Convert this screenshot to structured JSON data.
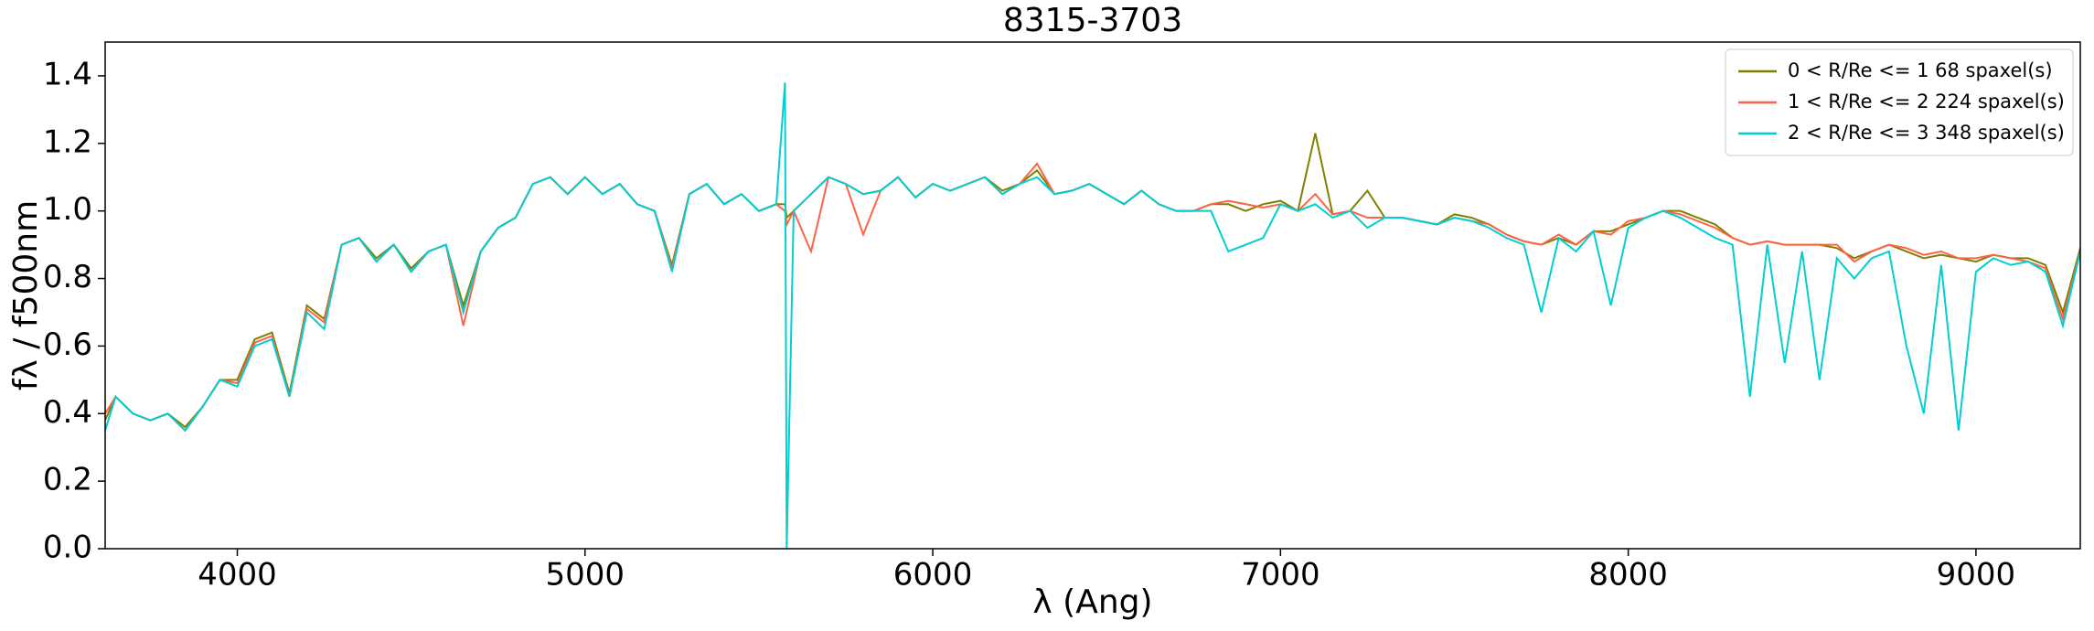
{
  "chart_data": {
    "type": "line",
    "title": "8315-3703",
    "x_label": "λ (Ang)",
    "y_label": "fλ / f500nm",
    "xlim": [
      3620,
      9300
    ],
    "ylim": [
      0,
      1.5
    ],
    "xticks": [
      4000,
      5000,
      6000,
      7000,
      8000,
      9000
    ],
    "yticks": [
      {
        "value": 0,
        "label": "0.0"
      },
      0.2,
      0.4,
      0.6,
      0.8,
      {
        "value": 1,
        "label": "1.0"
      },
      1.2,
      1.4
    ],
    "legend": "upper right",
    "x": [
      3620,
      3650,
      3700,
      3750,
      3800,
      3850,
      3900,
      3950,
      4000,
      4050,
      4100,
      4150,
      4200,
      4250,
      4300,
      4350,
      4400,
      4450,
      4500,
      4550,
      4600,
      4650,
      4700,
      4750,
      4800,
      4850,
      4900,
      4950,
      5000,
      5050,
      5100,
      5150,
      5200,
      5250,
      5300,
      5350,
      5400,
      5450,
      5500,
      5550,
      5575,
      5580,
      5600,
      5650,
      5700,
      5750,
      5800,
      5850,
      5900,
      5950,
      6000,
      6050,
      6100,
      6150,
      6200,
      6250,
      6300,
      6350,
      6400,
      6450,
      6500,
      6550,
      6600,
      6650,
      6700,
      6750,
      6800,
      6850,
      6900,
      6950,
      7000,
      7050,
      7100,
      7150,
      7200,
      7250,
      7300,
      7350,
      7400,
      7450,
      7500,
      7550,
      7600,
      7650,
      7700,
      7750,
      7800,
      7850,
      7900,
      7950,
      8000,
      8050,
      8100,
      8150,
      8200,
      8250,
      8300,
      8350,
      8400,
      8450,
      8500,
      8550,
      8600,
      8650,
      8700,
      8750,
      8800,
      8850,
      8900,
      8950,
      9000,
      9050,
      9100,
      9150,
      9200,
      9250,
      9300
    ],
    "series": [
      {
        "name": "0 < R/Re <= 1 68 spaxel(s)",
        "color": "#808000",
        "values": [
          0.38,
          0.45,
          0.4,
          0.38,
          0.4,
          0.36,
          0.42,
          0.5,
          0.5,
          0.62,
          0.64,
          0.46,
          0.72,
          0.68,
          0.9,
          0.92,
          0.86,
          0.9,
          0.83,
          0.88,
          0.9,
          0.72,
          0.88,
          0.95,
          0.98,
          1.08,
          1.1,
          1.05,
          1.1,
          1.05,
          1.08,
          1.02,
          1.0,
          0.84,
          1.05,
          1.08,
          1.02,
          1.05,
          1.0,
          1.02,
          1.02,
          0.98,
          1.0,
          1.05,
          1.1,
          1.08,
          1.05,
          1.06,
          1.1,
          1.04,
          1.08,
          1.06,
          1.08,
          1.1,
          1.06,
          1.08,
          1.12,
          1.05,
          1.06,
          1.08,
          1.05,
          1.02,
          1.06,
          1.02,
          1.0,
          1.0,
          1.02,
          1.02,
          1.0,
          1.02,
          1.03,
          1.0,
          1.23,
          0.99,
          1.0,
          1.06,
          0.98,
          0.98,
          0.97,
          0.96,
          0.99,
          0.98,
          0.96,
          0.93,
          0.91,
          0.9,
          0.92,
          0.9,
          0.94,
          0.94,
          0.96,
          0.98,
          1.0,
          1.0,
          0.98,
          0.96,
          0.92,
          0.9,
          0.91,
          0.9,
          0.9,
          0.9,
          0.89,
          0.86,
          0.88,
          0.9,
          0.88,
          0.86,
          0.87,
          0.86,
          0.85,
          0.87,
          0.86,
          0.86,
          0.84,
          0.7,
          0.89
        ]
      },
      {
        "name": "1 < R/Re <= 2 224 spaxel(s)",
        "color": "#ff6347",
        "values": [
          0.4,
          0.45,
          0.4,
          0.38,
          0.4,
          0.35,
          0.42,
          0.5,
          0.49,
          0.61,
          0.63,
          0.45,
          0.71,
          0.67,
          0.9,
          0.92,
          0.85,
          0.9,
          0.82,
          0.88,
          0.9,
          0.66,
          0.88,
          0.95,
          0.98,
          1.08,
          1.1,
          1.05,
          1.1,
          1.05,
          1.08,
          1.02,
          1.0,
          0.83,
          1.05,
          1.08,
          1.02,
          1.05,
          1.0,
          1.02,
          1.0,
          0.96,
          1.0,
          0.88,
          1.1,
          1.08,
          0.93,
          1.06,
          1.1,
          1.04,
          1.08,
          1.06,
          1.08,
          1.1,
          1.05,
          1.08,
          1.14,
          1.05,
          1.06,
          1.08,
          1.05,
          1.02,
          1.06,
          1.02,
          1.0,
          1.0,
          1.02,
          1.03,
          1.02,
          1.01,
          1.02,
          1.0,
          1.05,
          0.99,
          1.0,
          0.98,
          0.98,
          0.98,
          0.97,
          0.96,
          0.98,
          0.97,
          0.96,
          0.93,
          0.91,
          0.9,
          0.93,
          0.9,
          0.94,
          0.93,
          0.97,
          0.98,
          1.0,
          0.99,
          0.97,
          0.95,
          0.92,
          0.9,
          0.91,
          0.9,
          0.9,
          0.9,
          0.9,
          0.85,
          0.88,
          0.9,
          0.89,
          0.87,
          0.88,
          0.86,
          0.86,
          0.87,
          0.86,
          0.85,
          0.83,
          0.68,
          0.88
        ]
      },
      {
        "name": "2 < R/Re <= 3 348 spaxel(s)",
        "color": "#00ced1",
        "values": [
          0.35,
          0.45,
          0.4,
          0.38,
          0.4,
          0.35,
          0.42,
          0.5,
          0.48,
          0.6,
          0.62,
          0.45,
          0.7,
          0.65,
          0.9,
          0.92,
          0.85,
          0.9,
          0.82,
          0.88,
          0.9,
          0.7,
          0.88,
          0.95,
          0.98,
          1.08,
          1.1,
          1.05,
          1.1,
          1.05,
          1.08,
          1.02,
          1.0,
          0.82,
          1.05,
          1.08,
          1.02,
          1.05,
          1.0,
          1.02,
          1.38,
          0.0,
          1.0,
          1.05,
          1.1,
          1.08,
          1.05,
          1.06,
          1.1,
          1.04,
          1.08,
          1.06,
          1.08,
          1.1,
          1.05,
          1.08,
          1.1,
          1.05,
          1.06,
          1.08,
          1.05,
          1.02,
          1.06,
          1.02,
          1.0,
          1.0,
          1.0,
          0.88,
          0.9,
          0.92,
          1.02,
          1.0,
          1.02,
          0.98,
          1.0,
          0.95,
          0.98,
          0.98,
          0.97,
          0.96,
          0.98,
          0.97,
          0.95,
          0.92,
          0.9,
          0.7,
          0.92,
          0.88,
          0.94,
          0.72,
          0.95,
          0.98,
          1.0,
          0.98,
          0.95,
          0.92,
          0.9,
          0.45,
          0.9,
          0.55,
          0.88,
          0.5,
          0.86,
          0.8,
          0.86,
          0.88,
          0.6,
          0.4,
          0.84,
          0.35,
          0.82,
          0.86,
          0.84,
          0.85,
          0.82,
          0.66,
          0.88
        ]
      }
    ]
  }
}
